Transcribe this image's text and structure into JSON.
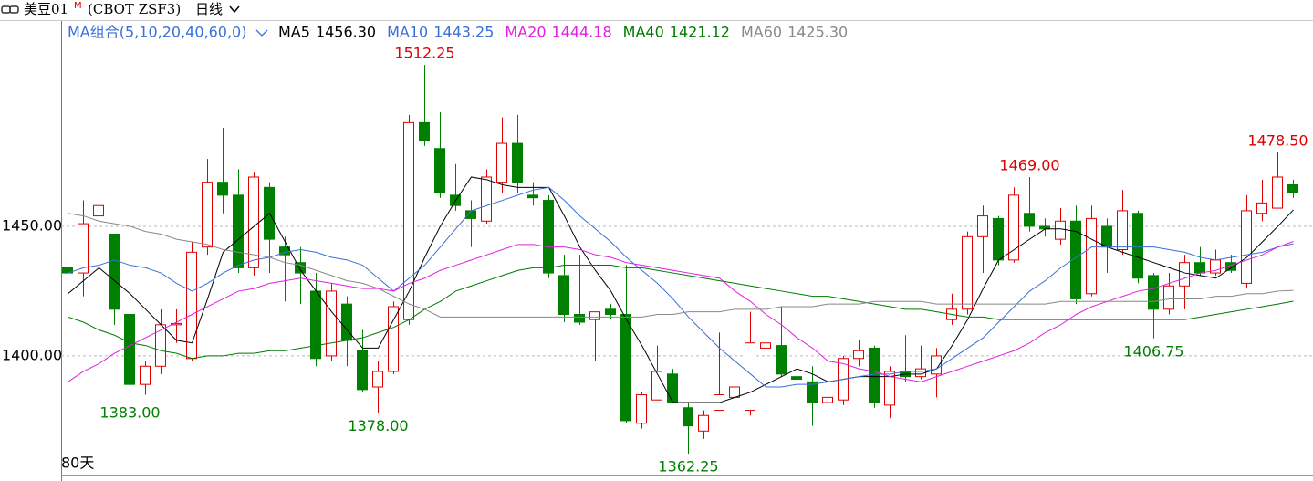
{
  "header": {
    "symbol": "美豆01",
    "symbol_sup": "M",
    "code": "(CBOT ZSF3)",
    "period": "日线"
  },
  "legend_title": "MA组合(5,10,20,40,60,0)",
  "footer": "80天",
  "chart_data": {
    "type": "candlestick",
    "ylim": [
      1354.2,
      1519.7
    ],
    "yticks": [
      {
        "value": 1400,
        "label": "1400.00"
      },
      {
        "value": 1450,
        "label": "1450.00"
      }
    ],
    "grid": true,
    "up_color": "#e00000",
    "down_color": "#008000",
    "candles": {
      "open": [
        1434,
        1432,
        1454,
        1447,
        1416,
        1389,
        1396,
        1412,
        1399,
        1442,
        1467,
        1462,
        1434,
        1465,
        1442,
        1436,
        1425,
        1400,
        1420,
        1402,
        1388,
        1394,
        1414,
        1490,
        1480,
        1462,
        1456,
        1452,
        1467,
        1482,
        1462,
        1460,
        1431,
        1416,
        1414,
        1418,
        1416,
        1374,
        1383,
        1393,
        1380,
        1371,
        1379,
        1384,
        1379,
        1403,
        1404,
        1392,
        1390,
        1382,
        1383,
        1399,
        1403,
        1381,
        1394,
        1392,
        1393,
        1414,
        1418,
        1446,
        1453,
        1437,
        1455,
        1450,
        1445,
        1452,
        1424,
        1450,
        1441,
        1455,
        1431,
        1418,
        1427,
        1436,
        1432,
        1436,
        1428,
        1455,
        1457,
        1466
      ],
      "high": [
        1434.5,
        1460,
        1470,
        1447,
        1418,
        1398,
        1418,
        1418,
        1444,
        1476,
        1488,
        1472,
        1471,
        1467,
        1446,
        1442,
        1432,
        1428,
        1423,
        1410,
        1398,
        1421,
        1493,
        1512.25,
        1494,
        1474,
        1460,
        1472,
        1492,
        1493,
        1467,
        1462,
        1439,
        1439,
        1417,
        1420,
        1435,
        1386,
        1404,
        1395,
        1382,
        1379,
        1409,
        1389,
        1417,
        1415,
        1419,
        1396,
        1396,
        1389,
        1400,
        1406,
        1404,
        1396,
        1408,
        1404,
        1403,
        1424,
        1448,
        1458,
        1454,
        1465,
        1469,
        1453,
        1457,
        1458,
        1458,
        1453,
        1464,
        1456,
        1432,
        1432,
        1439,
        1442,
        1441,
        1439,
        1462,
        1468,
        1478.5,
        1468
      ],
      "low": [
        1431,
        1423,
        1433,
        1412,
        1383,
        1385,
        1393,
        1405,
        1398,
        1439,
        1455,
        1432,
        1431,
        1432,
        1421,
        1420,
        1396,
        1398,
        1396,
        1386,
        1378,
        1393,
        1412,
        1481,
        1461,
        1456,
        1442,
        1451,
        1463,
        1463,
        1458,
        1430,
        1413,
        1412,
        1398,
        1414,
        1374,
        1372,
        1383,
        1382,
        1362.25,
        1368,
        1379,
        1382,
        1377,
        1382,
        1392,
        1389,
        1373,
        1366,
        1381,
        1396,
        1380,
        1376,
        1390,
        1391,
        1384,
        1412,
        1416,
        1432,
        1435,
        1436,
        1448,
        1446,
        1443,
        1420,
        1423,
        1432,
        1439,
        1428,
        1406.75,
        1416,
        1418,
        1431,
        1431,
        1432,
        1426,
        1452,
        1457,
        1461
      ],
      "close": [
        1432,
        1451,
        1458,
        1418,
        1389,
        1396,
        1412,
        1412.5,
        1440,
        1467,
        1462,
        1434,
        1469,
        1445,
        1439,
        1432,
        1399,
        1425,
        1406,
        1387,
        1394,
        1419,
        1490,
        1483,
        1463,
        1458,
        1453,
        1469,
        1482,
        1467,
        1461,
        1432,
        1416,
        1413,
        1417,
        1416,
        1375,
        1385,
        1394,
        1382,
        1373,
        1377,
        1385,
        1388,
        1405,
        1405,
        1393,
        1391,
        1382,
        1384,
        1399,
        1402,
        1382,
        1394,
        1392,
        1395,
        1400,
        1418,
        1446,
        1454,
        1437,
        1462,
        1450,
        1449,
        1452,
        1422,
        1453,
        1442,
        1456,
        1430,
        1418,
        1427,
        1436,
        1432,
        1437,
        1433,
        1456,
        1459,
        1469,
        1463
      ],
      "high_labels": [
        null,
        null,
        null,
        null,
        null,
        null,
        null,
        null,
        null,
        null,
        null,
        null,
        null,
        null,
        null,
        null,
        null,
        null,
        null,
        null,
        null,
        null,
        null,
        "1512.25",
        null,
        null,
        null,
        null,
        null,
        null,
        null,
        null,
        null,
        null,
        null,
        null,
        null,
        null,
        null,
        null,
        null,
        null,
        null,
        null,
        null,
        null,
        null,
        null,
        null,
        null,
        null,
        null,
        null,
        null,
        null,
        null,
        null,
        null,
        null,
        null,
        null,
        null,
        "1469.00",
        null,
        null,
        null,
        null,
        null,
        null,
        null,
        null,
        null,
        null,
        null,
        null,
        null,
        null,
        null,
        "1478.50",
        null
      ],
      "low_labels": [
        null,
        null,
        null,
        null,
        "1383.00",
        null,
        null,
        null,
        null,
        null,
        null,
        null,
        null,
        null,
        null,
        null,
        null,
        null,
        null,
        null,
        "1378.00",
        null,
        null,
        null,
        null,
        null,
        null,
        null,
        null,
        null,
        null,
        null,
        null,
        null,
        null,
        null,
        null,
        null,
        null,
        null,
        "1362.25",
        null,
        null,
        null,
        null,
        null,
        null,
        null,
        null,
        null,
        null,
        null,
        null,
        null,
        null,
        null,
        null,
        null,
        null,
        null,
        null,
        null,
        null,
        null,
        null,
        null,
        null,
        null,
        null,
        null,
        "1406.75",
        null,
        null,
        null,
        null,
        null,
        null,
        null,
        null,
        null
      ]
    },
    "series": [
      {
        "name": "MA5",
        "color": "#000000",
        "last_label": "1456.30",
        "values": [
          1424,
          1429,
          1434,
          1429,
          1424,
          1418,
          1412,
          1406,
          1405,
          1422,
          1440,
          1445,
          1450,
          1455,
          1444,
          1433,
          1425,
          1417,
          1410,
          1403,
          1403,
          1414,
          1425,
          1438,
          1450,
          1460,
          1469,
          1468,
          1466,
          1465,
          1465,
          1465,
          1454,
          1442,
          1433,
          1425,
          1414,
          1404,
          1393,
          1382,
          1382,
          1382,
          1382,
          1384,
          1386,
          1389,
          1392,
          1395,
          1393,
          1390,
          1391,
          1392,
          1392,
          1392,
          1393,
          1393,
          1395,
          1404,
          1414,
          1426,
          1437,
          1441,
          1445,
          1449,
          1449,
          1448,
          1445,
          1442,
          1440,
          1438,
          1436,
          1434,
          1432,
          1431,
          1430,
          1434,
          1438,
          1444,
          1450,
          1456.3
        ]
      },
      {
        "name": "MA10",
        "color": "#3a6fd8",
        "last_label": "1443.25",
        "values": [
          1432,
          1434,
          1435,
          1437,
          1435,
          1434,
          1432,
          1428,
          1425,
          1428,
          1432,
          1435,
          1437,
          1438,
          1440,
          1441,
          1440,
          1438,
          1437,
          1435,
          1430,
          1425,
          1430,
          1435,
          1442,
          1449,
          1456,
          1458,
          1460,
          1462,
          1464,
          1465,
          1460,
          1454,
          1449,
          1444,
          1438,
          1433,
          1428,
          1422,
          1415,
          1409,
          1403,
          1398,
          1393,
          1388,
          1388,
          1389,
          1389,
          1390,
          1391,
          1392,
          1393,
          1393,
          1394,
          1394,
          1395,
          1399,
          1403,
          1407,
          1413,
          1419,
          1425,
          1429,
          1434,
          1438,
          1442,
          1442,
          1442,
          1442,
          1442,
          1441,
          1440,
          1438,
          1437,
          1438,
          1439,
          1440,
          1442,
          1443.25
        ]
      },
      {
        "name": "MA20",
        "color": "#e020e0",
        "last_label": "1444.18",
        "values": [
          1390,
          1394,
          1397,
          1401,
          1404,
          1407,
          1410,
          1413,
          1416,
          1419,
          1422,
          1425,
          1426,
          1428,
          1429,
          1430,
          1429,
          1428,
          1427,
          1426,
          1426,
          1425,
          1428,
          1430,
          1433,
          1435,
          1437,
          1439,
          1441,
          1443,
          1443,
          1442,
          1442,
          1441,
          1439,
          1438,
          1436,
          1435,
          1434,
          1433,
          1432,
          1431,
          1430,
          1425,
          1421,
          1416,
          1412,
          1407,
          1403,
          1398,
          1397,
          1395,
          1394,
          1392,
          1391,
          1390,
          1392,
          1394,
          1396,
          1398,
          1400,
          1402,
          1405,
          1409,
          1412,
          1416,
          1419,
          1421,
          1423,
          1425,
          1426,
          1428,
          1430,
          1432,
          1433,
          1435,
          1437,
          1439,
          1442,
          1444.18
        ]
      },
      {
        "name": "MA40",
        "color": "#007a00",
        "last_label": "1421.12",
        "values": [
          1415,
          1413,
          1410,
          1408,
          1405,
          1404,
          1402,
          1401,
          1399,
          1400,
          1400,
          1401,
          1401,
          1402,
          1402,
          1403,
          1404,
          1405,
          1406,
          1407,
          1409,
          1411,
          1414,
          1418,
          1421,
          1425,
          1427,
          1429,
          1431,
          1433,
          1434,
          1434,
          1435,
          1435,
          1435,
          1435,
          1434,
          1434,
          1433,
          1432,
          1431,
          1430,
          1429,
          1428,
          1427,
          1426,
          1425,
          1424,
          1423,
          1423,
          1422,
          1421,
          1420,
          1419,
          1418,
          1418,
          1417,
          1416,
          1415,
          1415,
          1414,
          1414,
          1414,
          1414,
          1414,
          1414,
          1414,
          1414,
          1414,
          1414,
          1414,
          1414,
          1414,
          1415,
          1416,
          1417,
          1418,
          1419,
          1420,
          1421.12
        ]
      },
      {
        "name": "MA60",
        "color": "#888888",
        "last_label": "1425.30",
        "values": [
          1455,
          1454,
          1452,
          1451,
          1450,
          1448,
          1447,
          1445,
          1444,
          1443,
          1441,
          1440,
          1439,
          1438,
          1436,
          1435,
          1433,
          1431,
          1429,
          1428,
          1426,
          1423,
          1420,
          1418,
          1415,
          1415,
          1415,
          1415,
          1415,
          1415,
          1415,
          1415,
          1415,
          1415,
          1415,
          1415,
          1415,
          1415,
          1416,
          1416,
          1417,
          1417,
          1417,
          1418,
          1418,
          1418,
          1419,
          1419,
          1419,
          1420,
          1420,
          1420,
          1421,
          1421,
          1421,
          1421,
          1420,
          1420,
          1420,
          1420,
          1420,
          1420,
          1420,
          1420,
          1421,
          1421,
          1421,
          1421,
          1421,
          1421,
          1421,
          1422,
          1422,
          1422,
          1423,
          1423,
          1424,
          1424,
          1425,
          1425.3
        ]
      }
    ]
  }
}
